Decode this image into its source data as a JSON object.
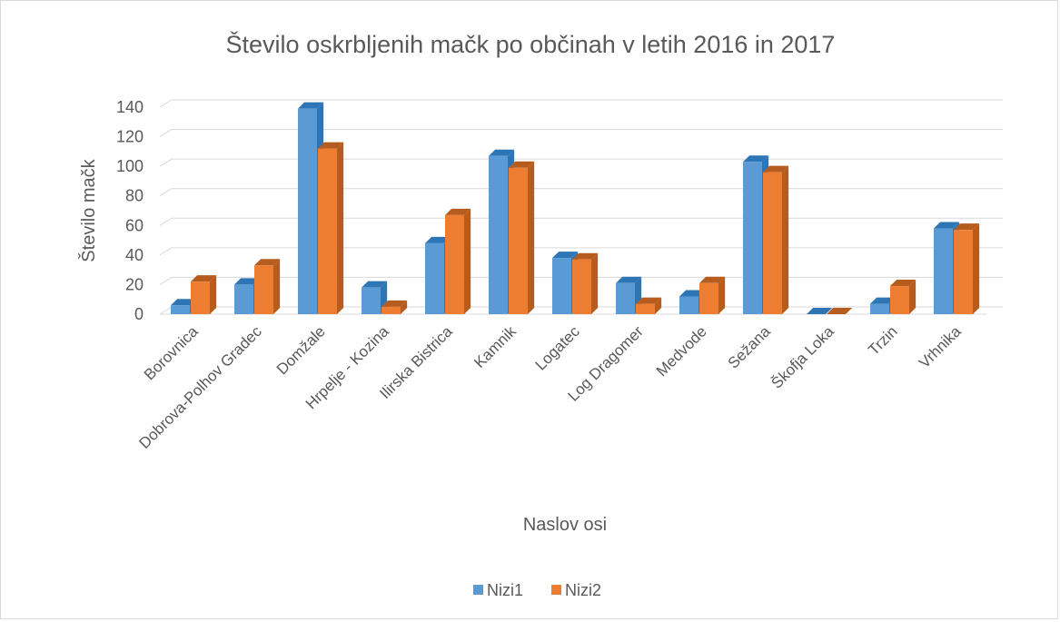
{
  "chart_data": {
    "type": "bar",
    "title": "Število oskrbljenih mačk po občinah v letih 2016 in 2017",
    "xlabel": "Naslov osi",
    "ylabel": "Število mačk",
    "ylim": [
      0,
      140
    ],
    "yticks": [
      "0",
      "20",
      "40",
      "60",
      "80",
      "100",
      "120",
      "140"
    ],
    "categories": [
      "Borovnica",
      "Dobrova-Polhov Gradec",
      "Domžale",
      "Hrpelje - Kozina",
      "Ilirska Bistrica",
      "Kamnik",
      "Logatec",
      "Log Dragomer",
      "Medvode",
      "Sežana",
      "Škofja Loka",
      "Trzin",
      "Vrhnika"
    ],
    "series": [
      {
        "name": "Nizi1",
        "color": "#5b9bd5",
        "side": "#2e75b6",
        "values": [
          6,
          20,
          139,
          18,
          48,
          107,
          38,
          21,
          12,
          103,
          0,
          7,
          58
        ]
      },
      {
        "name": "Nizi2",
        "color": "#ed7d31",
        "side": "#b55c1e",
        "values": [
          22,
          33,
          112,
          5,
          67,
          99,
          37,
          7,
          21,
          96,
          0,
          19,
          57
        ]
      }
    ],
    "grid": true,
    "legend": "bottom",
    "style": "3d-clustered-column"
  }
}
